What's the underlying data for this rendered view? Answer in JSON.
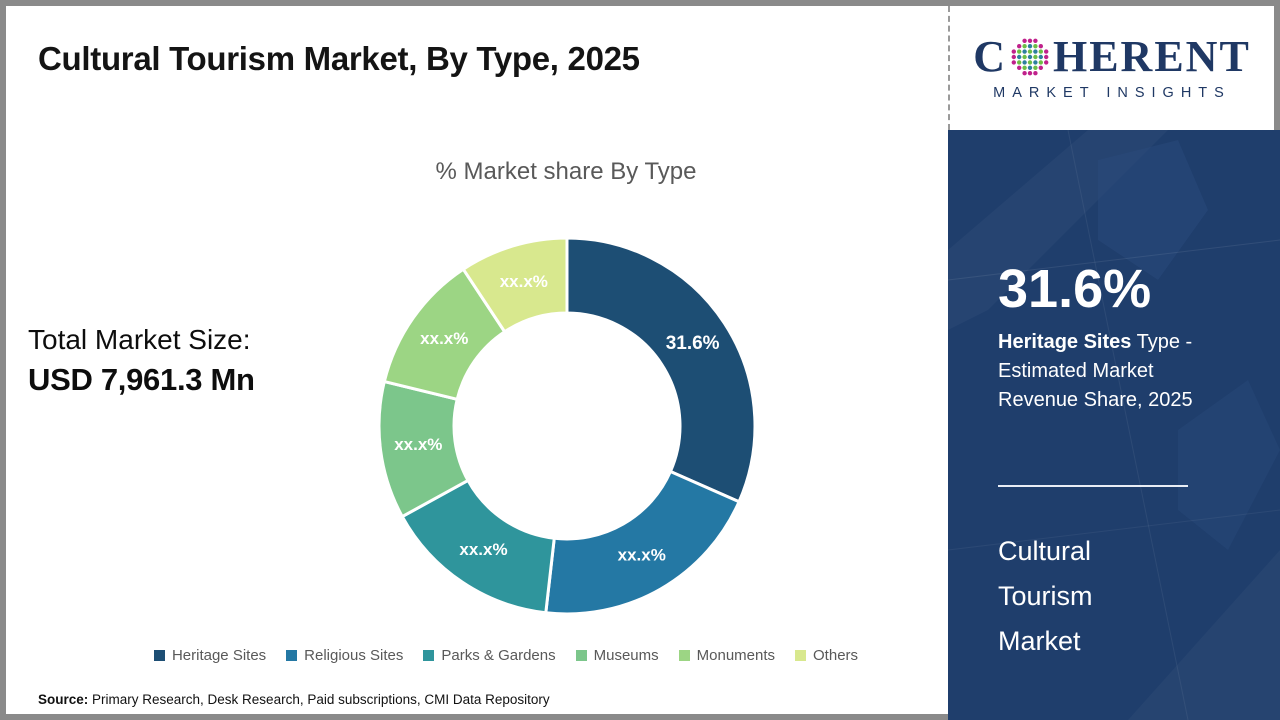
{
  "slide": {
    "title": "Cultural Tourism Market, By Type, 2025",
    "total_market_label": "Total Market Size:",
    "total_market_value": "USD 7,961.3 Mn",
    "source_label": "Source:",
    "source_text": " Primary Research, Desk Research, Paid subscriptions, CMI Data Repository"
  },
  "logo": {
    "word_start": "C",
    "word_end": "HERENT",
    "subtitle": "MARKET INSIGHTS",
    "text_color": "#1f3864",
    "globe_colors": {
      "outer": "#c0218b",
      "teal": "#2d7f9d",
      "green": "#6cbe45"
    }
  },
  "sidebar": {
    "background_color": "#1f3e6c",
    "stat_value": "31.6%",
    "stat_bold": "Heritage Sites",
    "stat_rest": " Type - Estimated Market Revenue Share, 2025",
    "market_name_lines": [
      "Cultural",
      "Tourism",
      "Market"
    ]
  },
  "chart_data": {
    "type": "pie",
    "variant": "donut",
    "title": "% Market share By Type",
    "legend_position": "bottom",
    "start_angle_deg": 0,
    "direction": "clockwise",
    "inner_radius_ratio": 0.6,
    "segments": [
      {
        "label": "Heritage Sites",
        "display": "31.6%",
        "value": 31.6,
        "color": "#1d4e74"
      },
      {
        "label": "Religious Sites",
        "display": "xx.x%",
        "value": 20.2,
        "color": "#2478a4"
      },
      {
        "label": "Parks & Gardens",
        "display": "xx.x%",
        "value": 15.2,
        "color": "#2f959c"
      },
      {
        "label": "Museums",
        "display": "xx.x%",
        "value": 11.8,
        "color": "#7cc68b"
      },
      {
        "label": "Monuments",
        "display": "xx.x%",
        "value": 11.9,
        "color": "#9cd584"
      },
      {
        "label": "Others",
        "display": "xx.x%",
        "value": 9.3,
        "color": "#d8e88e"
      }
    ]
  }
}
